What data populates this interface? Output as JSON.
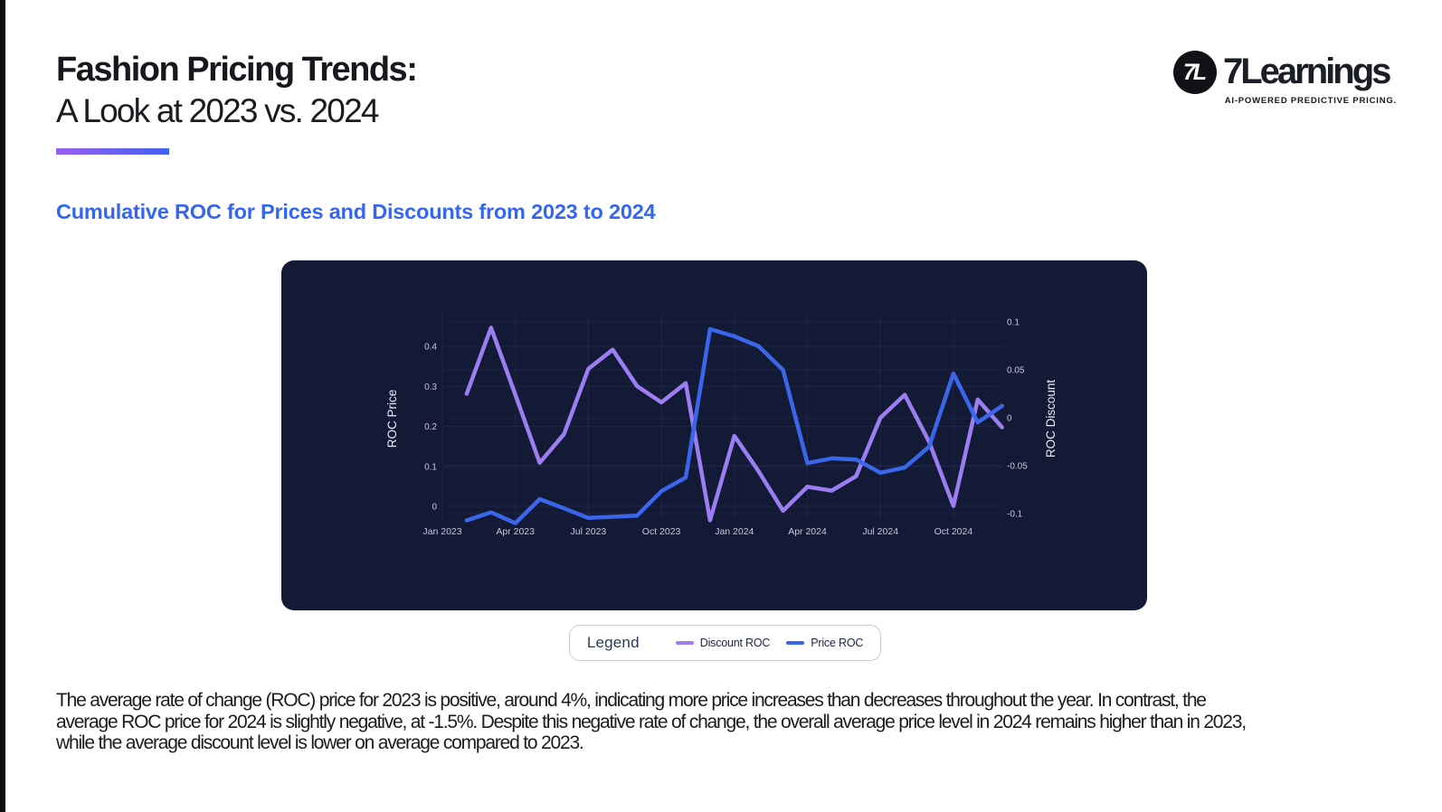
{
  "page": {
    "background": "#ffffff",
    "edge_strip_color": "#0e0e10"
  },
  "header": {
    "title_line1": "Fashion Pricing Trends:",
    "title_line2": "A Look at 2023 vs. 2024",
    "underline_gradient": [
      "#9a5ff0",
      "#3f62f2"
    ]
  },
  "logo": {
    "monogram": "7L",
    "wordmark": "7Learnings",
    "tagline": "AI-POWERED PREDICTIVE PRICING."
  },
  "section_heading": "Cumulative ROC for Prices and Discounts from 2023 to 2024",
  "chart_data": {
    "type": "line",
    "title": "Cumulative ROC for Prices and Discounts from 2023 to 2024",
    "background": "#131a36",
    "grid": true,
    "x_tick_labels": [
      "Jan 2023",
      "Apr 2023",
      "Jul 2023",
      "Oct 2023",
      "Jan 2024",
      "Apr 2024",
      "Jul 2024",
      "Oct 2024"
    ],
    "months": [
      "Feb 2023",
      "Mar 2023",
      "Apr 2023",
      "May 2023",
      "Jun 2023",
      "Jul 2023",
      "Aug 2023",
      "Sep 2023",
      "Oct 2023",
      "Nov 2023",
      "Dec 2023",
      "Jan 2024",
      "Feb 2024",
      "Mar 2024",
      "Apr 2024",
      "May 2024",
      "Jun 2024",
      "Jul 2024",
      "Aug 2024",
      "Sep 2024",
      "Oct 2024",
      "Nov 2024",
      "Dec 2024"
    ],
    "left_axis": {
      "label": "ROC Price",
      "ticks": [
        0.4,
        0.3,
        0.2,
        0.1,
        0
      ],
      "range": [
        -0.05,
        0.47
      ],
      "applies_to": "Price ROC"
    },
    "right_axis": {
      "label": "ROC Discount",
      "ticks": [
        0.1,
        0.05,
        0,
        -0.05,
        -0.1
      ],
      "range": [
        -0.115,
        0.102
      ],
      "applies_to": "Discount ROC"
    },
    "legend_position": "below",
    "series": [
      {
        "name": "Discount ROC",
        "color": "#9d7df2",
        "axis": "right",
        "values": [
          0.025,
          0.094,
          0.024,
          -0.047,
          -0.017,
          0.051,
          0.071,
          0.033,
          0.016,
          0.036,
          -0.107,
          -0.019,
          -0.056,
          -0.097,
          -0.072,
          -0.076,
          -0.061,
          0.0,
          0.024,
          -0.025,
          -0.092,
          0.019,
          -0.01
        ]
      },
      {
        "name": "Price ROC",
        "color": "#3a67ea",
        "axis": "left",
        "values": [
          -0.035,
          -0.015,
          -0.042,
          0.018,
          -0.005,
          -0.029,
          -0.026,
          -0.023,
          0.038,
          0.072,
          0.443,
          0.425,
          0.4,
          0.341,
          0.108,
          0.12,
          0.117,
          0.084,
          0.097,
          0.149,
          0.332,
          0.21,
          0.251
        ]
      }
    ]
  },
  "legend": {
    "title": "Legend",
    "items": [
      {
        "label": "Discount ROC",
        "color": "#9d7df2"
      },
      {
        "label": "Price ROC",
        "color": "#3a67ea"
      }
    ]
  },
  "description": {
    "lines": [
      "The average rate of change (ROC) price for 2023 is positive, around 4%, indicating more price increases than decreases throughout the year. In contrast, the",
      "average ROC price for 2024 is slightly negative, at -1.5%. Despite this negative rate of change, the overall average price level in 2024 remains higher than in 2023,",
      "while the average discount level is lower on average compared to 2023."
    ]
  }
}
